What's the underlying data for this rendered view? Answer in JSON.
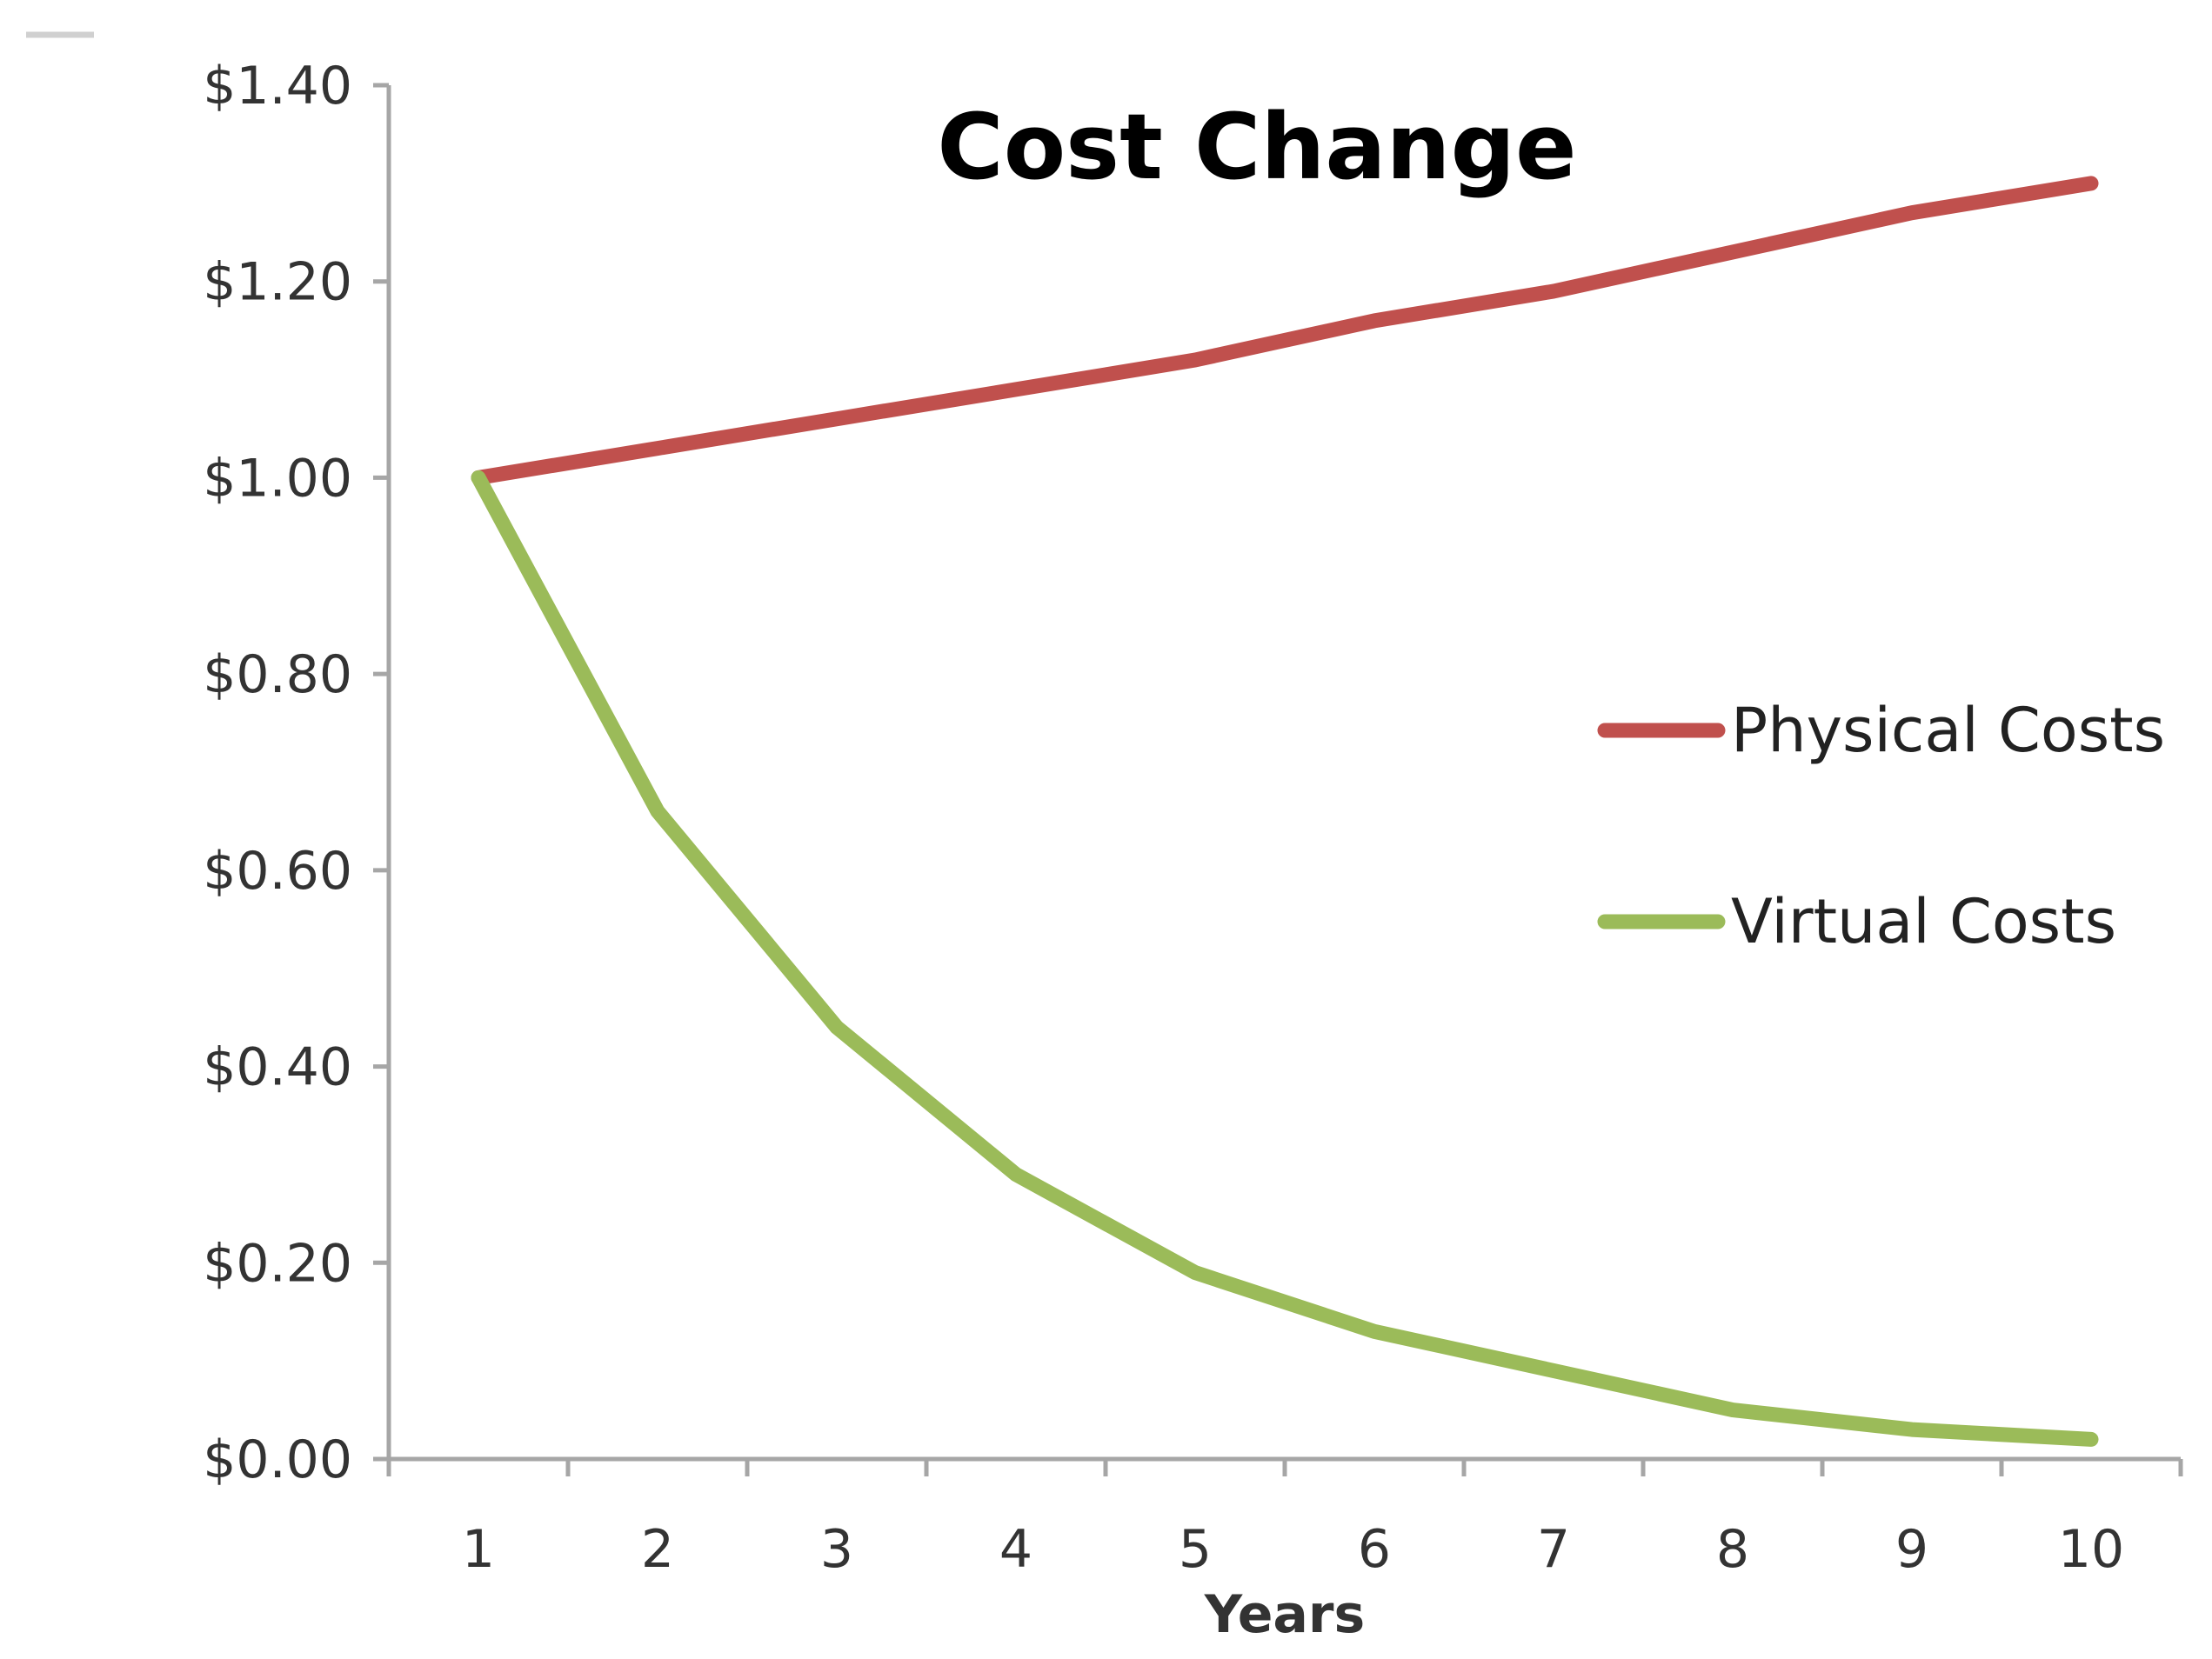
{
  "chart_data": {
    "type": "line",
    "title": "Cost Change",
    "xlabel": "Years",
    "ylabel": "",
    "categories": [
      "1",
      "2",
      "3",
      "4",
      "5",
      "6",
      "7",
      "8",
      "9",
      "10"
    ],
    "ylim": [
      0,
      1.4
    ],
    "y_ticks": [
      {
        "value": 0.0,
        "label": "$0.00"
      },
      {
        "value": 0.2,
        "label": "$0.20"
      },
      {
        "value": 0.4,
        "label": "$0.40"
      },
      {
        "value": 0.6,
        "label": "$0.60"
      },
      {
        "value": 0.8,
        "label": "$0.80"
      },
      {
        "value": 1.0,
        "label": "$1.00"
      },
      {
        "value": 1.2,
        "label": "$1.20"
      },
      {
        "value": 1.4,
        "label": "$1.40"
      }
    ],
    "grid": false,
    "legend_position": "right",
    "series": [
      {
        "name": "Physical Costs",
        "color": "#c0504d",
        "values": [
          1.0,
          1.03,
          1.06,
          1.09,
          1.12,
          1.16,
          1.19,
          1.23,
          1.27,
          1.3
        ]
      },
      {
        "name": "Virtual Costs",
        "color": "#9bbb59",
        "values": [
          1.0,
          0.66,
          0.44,
          0.29,
          0.19,
          0.13,
          0.09,
          0.05,
          0.03,
          0.02
        ]
      }
    ]
  }
}
